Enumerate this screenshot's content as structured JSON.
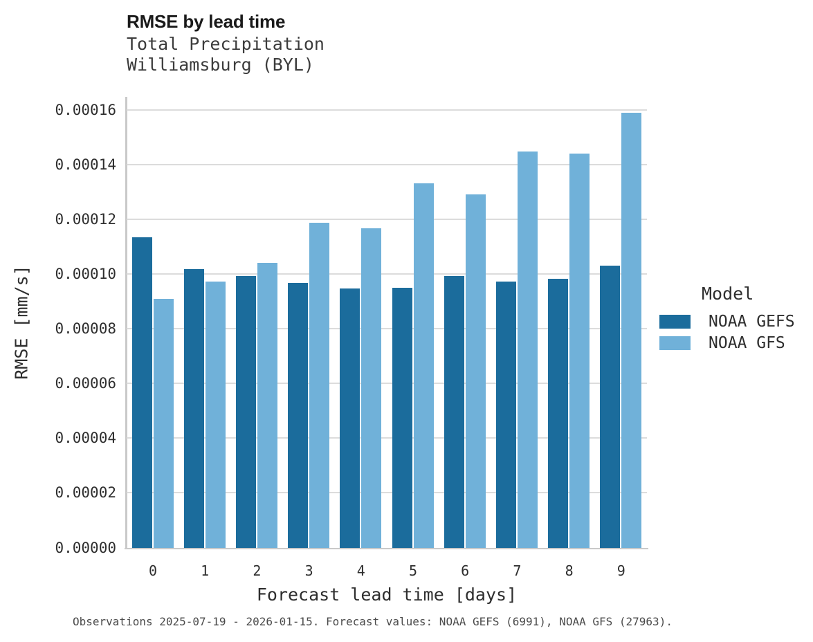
{
  "chart_data": {
    "type": "bar",
    "title": "RMSE by lead time",
    "subtitle": [
      "Total Precipitation",
      "Williamsburg (BYL)"
    ],
    "xlabel": "Forecast lead time [days]",
    "ylabel": "RMSE [mm/s]",
    "categories": [
      "0",
      "1",
      "2",
      "3",
      "4",
      "5",
      "6",
      "7",
      "8",
      "9"
    ],
    "series": [
      {
        "name": "NOAA GEFS",
        "color": "#1b6c9c",
        "values": [
          0.0001133,
          0.0001017,
          9.93e-05,
          9.67e-05,
          9.47e-05,
          9.5e-05,
          9.91e-05,
          9.73e-05,
          9.81e-05,
          0.000103
        ]
      },
      {
        "name": "NOAA GFS",
        "color": "#70b1d9",
        "values": [
          9.1e-05,
          9.71e-05,
          0.000104,
          0.0001187,
          0.0001166,
          0.0001331,
          0.0001291,
          0.0001447,
          0.000144,
          0.0001589
        ]
      }
    ],
    "ylim": [
      0,
      0.00016
    ],
    "ytick_step": 2e-05,
    "ytick_labels": [
      "0.00000",
      "0.00002",
      "0.00004",
      "0.00006",
      "0.00008",
      "0.00010",
      "0.00012",
      "0.00014",
      "0.00016"
    ],
    "legend_title": "Model",
    "legend_position": "right",
    "grid": true,
    "grid_color": "#dcdcdc",
    "axis_color": "#c9c9c9"
  },
  "caption": "Observations 2025-07-19 - 2026-01-15. Forecast values: NOAA GEFS (6991), NOAA GFS (27963)."
}
